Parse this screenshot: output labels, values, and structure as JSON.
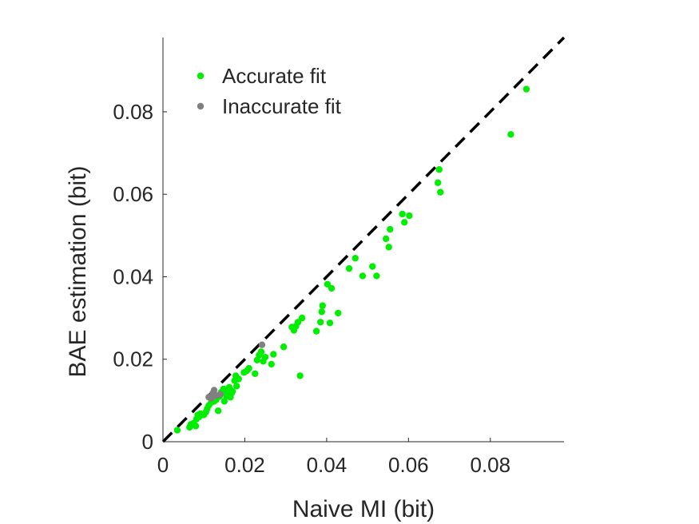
{
  "chart_data": {
    "type": "scatter",
    "title": "",
    "xlabel": "Naive MI (bit)",
    "ylabel": "BAE estimation (bit)",
    "xlim": [
      0,
      0.098
    ],
    "ylim": [
      0,
      0.098
    ],
    "x_ticks": [
      0,
      0.02,
      0.04,
      0.06,
      0.08
    ],
    "y_ticks": [
      0,
      0.02,
      0.04,
      0.06,
      0.08
    ],
    "x_tick_labels": [
      "0",
      "0.02",
      "0.04",
      "0.06",
      "0.08"
    ],
    "y_tick_labels": [
      "0",
      "0.02",
      "0.04",
      "0.06",
      "0.08"
    ],
    "grid": false,
    "legend_position": "top-left",
    "reference_line": {
      "style": "dashed",
      "color": "#000000",
      "from": [
        0,
        0
      ],
      "to": [
        0.098,
        0.098
      ]
    },
    "series": [
      {
        "name": "Accurate fit",
        "color": "#00ee00",
        "points": [
          [
            0.0035,
            0.0028
          ],
          [
            0.0065,
            0.0035
          ],
          [
            0.0068,
            0.0042
          ],
          [
            0.0075,
            0.0045
          ],
          [
            0.008,
            0.0038
          ],
          [
            0.0082,
            0.0055
          ],
          [
            0.0085,
            0.0065
          ],
          [
            0.0088,
            0.006
          ],
          [
            0.0092,
            0.0068
          ],
          [
            0.01,
            0.0065
          ],
          [
            0.0105,
            0.0072
          ],
          [
            0.0108,
            0.008
          ],
          [
            0.0112,
            0.0088
          ],
          [
            0.0118,
            0.0095
          ],
          [
            0.0125,
            0.0098
          ],
          [
            0.013,
            0.0102
          ],
          [
            0.0135,
            0.0075
          ],
          [
            0.0138,
            0.011
          ],
          [
            0.0142,
            0.012
          ],
          [
            0.0148,
            0.0128
          ],
          [
            0.015,
            0.0098
          ],
          [
            0.0152,
            0.0118
          ],
          [
            0.0155,
            0.011
          ],
          [
            0.0158,
            0.0125
          ],
          [
            0.0162,
            0.0132
          ],
          [
            0.0165,
            0.0108
          ],
          [
            0.0168,
            0.0118
          ],
          [
            0.017,
            0.0122
          ],
          [
            0.0175,
            0.0148
          ],
          [
            0.0178,
            0.016
          ],
          [
            0.018,
            0.0135
          ],
          [
            0.0185,
            0.0152
          ],
          [
            0.0198,
            0.0168
          ],
          [
            0.0205,
            0.0172
          ],
          [
            0.021,
            0.0178
          ],
          [
            0.0225,
            0.0165
          ],
          [
            0.023,
            0.0198
          ],
          [
            0.0235,
            0.021
          ],
          [
            0.024,
            0.0218
          ],
          [
            0.0245,
            0.0195
          ],
          [
            0.025,
            0.0205
          ],
          [
            0.0265,
            0.0188
          ],
          [
            0.027,
            0.0212
          ],
          [
            0.0295,
            0.023
          ],
          [
            0.0315,
            0.0278
          ],
          [
            0.032,
            0.027
          ],
          [
            0.0325,
            0.028
          ],
          [
            0.033,
            0.029
          ],
          [
            0.0335,
            0.016
          ],
          [
            0.034,
            0.03
          ],
          [
            0.0375,
            0.0268
          ],
          [
            0.0385,
            0.029
          ],
          [
            0.0388,
            0.0315
          ],
          [
            0.039,
            0.033
          ],
          [
            0.0402,
            0.0382
          ],
          [
            0.0408,
            0.0288
          ],
          [
            0.0412,
            0.0372
          ],
          [
            0.0428,
            0.0312
          ],
          [
            0.0455,
            0.042
          ],
          [
            0.047,
            0.0445
          ],
          [
            0.0488,
            0.0402
          ],
          [
            0.0512,
            0.0425
          ],
          [
            0.0522,
            0.0402
          ],
          [
            0.0545,
            0.0492
          ],
          [
            0.0552,
            0.0472
          ],
          [
            0.0555,
            0.0515
          ],
          [
            0.0585,
            0.0552
          ],
          [
            0.059,
            0.0532
          ],
          [
            0.0602,
            0.0548
          ],
          [
            0.0672,
            0.0628
          ],
          [
            0.0675,
            0.066
          ],
          [
            0.0678,
            0.0605
          ],
          [
            0.085,
            0.0745
          ],
          [
            0.0888,
            0.0855
          ]
        ]
      },
      {
        "name": "Inaccurate fit",
        "color": "#808080",
        "points": [
          [
            0.0112,
            0.0108
          ],
          [
            0.0118,
            0.0105
          ],
          [
            0.0122,
            0.0118
          ],
          [
            0.0125,
            0.0125
          ],
          [
            0.013,
            0.0112
          ],
          [
            0.014,
            0.0115
          ],
          [
            0.0242,
            0.0235
          ]
        ]
      }
    ]
  }
}
